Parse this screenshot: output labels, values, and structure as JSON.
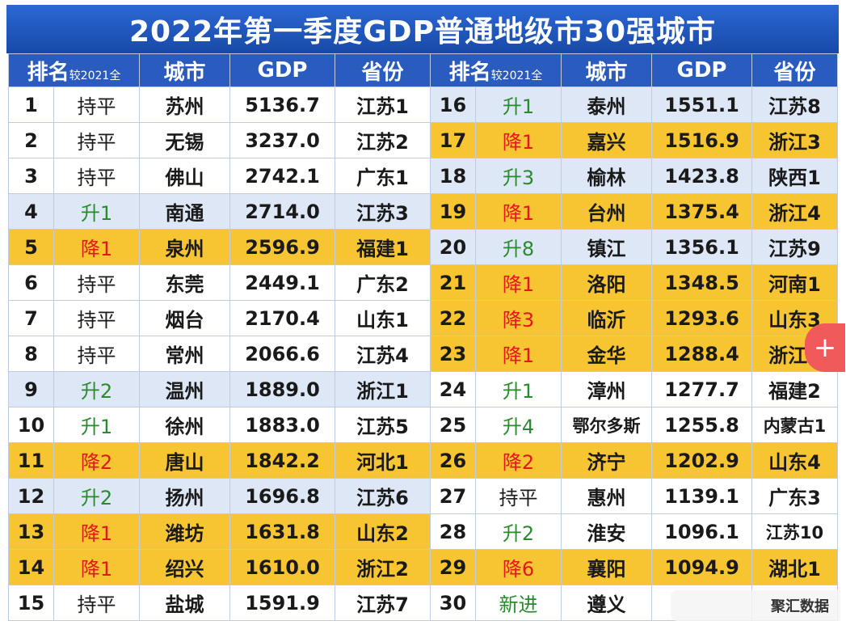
{
  "title": "2022年第一季度GDP普通地级市30强城市",
  "headers": {
    "rank": "排名",
    "rank_note": "较2021全",
    "city": "城市",
    "gdp": "GDP",
    "province": "省份"
  },
  "rows": [
    {
      "left": {
        "rank": "1",
        "change": "持平",
        "city": "苏州",
        "gdp": "5136.7",
        "prov": "江苏1"
      },
      "right": {
        "rank": "16",
        "change": "升1",
        "city": "泰州",
        "gdp": "1551.1",
        "prov": "江苏8"
      }
    },
    {
      "left": {
        "rank": "2",
        "change": "持平",
        "city": "无锡",
        "gdp": "3237.0",
        "prov": "江苏2"
      },
      "right": {
        "rank": "17",
        "change": "降1",
        "city": "嘉兴",
        "gdp": "1516.9",
        "prov": "浙江3"
      }
    },
    {
      "left": {
        "rank": "3",
        "change": "持平",
        "city": "佛山",
        "gdp": "2742.1",
        "prov": "广东1"
      },
      "right": {
        "rank": "18",
        "change": "升3",
        "city": "榆林",
        "gdp": "1423.8",
        "prov": "陕西1"
      }
    },
    {
      "left": {
        "rank": "4",
        "change": "升1",
        "city": "南通",
        "gdp": "2714.0",
        "prov": "江苏3"
      },
      "right": {
        "rank": "19",
        "change": "降1",
        "city": "台州",
        "gdp": "1375.4",
        "prov": "浙江4"
      }
    },
    {
      "left": {
        "rank": "5",
        "change": "降1",
        "city": "泉州",
        "gdp": "2596.9",
        "prov": "福建1"
      },
      "right": {
        "rank": "20",
        "change": "升8",
        "city": "镇江",
        "gdp": "1356.1",
        "prov": "江苏9"
      }
    },
    {
      "left": {
        "rank": "6",
        "change": "持平",
        "city": "东莞",
        "gdp": "2449.1",
        "prov": "广东2"
      },
      "right": {
        "rank": "21",
        "change": "降1",
        "city": "洛阳",
        "gdp": "1348.5",
        "prov": "河南1"
      }
    },
    {
      "left": {
        "rank": "7",
        "change": "持平",
        "city": "烟台",
        "gdp": "2170.4",
        "prov": "山东1"
      },
      "right": {
        "rank": "22",
        "change": "降3",
        "city": "临沂",
        "gdp": "1293.6",
        "prov": "山东3"
      }
    },
    {
      "left": {
        "rank": "8",
        "change": "持平",
        "city": "常州",
        "gdp": "2066.6",
        "prov": "江苏4"
      },
      "right": {
        "rank": "23",
        "change": "降1",
        "city": "金华",
        "gdp": "1288.4",
        "prov": "浙江5"
      }
    },
    {
      "left": {
        "rank": "9",
        "change": "升2",
        "city": "温州",
        "gdp": "1889.0",
        "prov": "浙江1"
      },
      "right": {
        "rank": "24",
        "change": "升1",
        "city": "漳州",
        "gdp": "1277.7",
        "prov": "福建2"
      }
    },
    {
      "left": {
        "rank": "10",
        "change": "升1",
        "city": "徐州",
        "gdp": "1883.0",
        "prov": "江苏5"
      },
      "right": {
        "rank": "25",
        "change": "升4",
        "city": "鄂尔多斯",
        "gdp": "1255.8",
        "prov": "内蒙古1"
      }
    },
    {
      "left": {
        "rank": "11",
        "change": "降2",
        "city": "唐山",
        "gdp": "1842.2",
        "prov": "河北1"
      },
      "right": {
        "rank": "26",
        "change": "降2",
        "city": "济宁",
        "gdp": "1202.9",
        "prov": "山东4"
      }
    },
    {
      "left": {
        "rank": "12",
        "change": "升2",
        "city": "扬州",
        "gdp": "1696.8",
        "prov": "江苏6"
      },
      "right": {
        "rank": "27",
        "change": "持平",
        "city": "惠州",
        "gdp": "1139.1",
        "prov": "广东3"
      }
    },
    {
      "left": {
        "rank": "13",
        "change": "降1",
        "city": "潍坊",
        "gdp": "1631.8",
        "prov": "山东2"
      },
      "right": {
        "rank": "28",
        "change": "升2",
        "city": "淮安",
        "gdp": "1096.1",
        "prov": "江苏10"
      }
    },
    {
      "left": {
        "rank": "14",
        "change": "降1",
        "city": "绍兴",
        "gdp": "1610.0",
        "prov": "浙江2"
      },
      "right": {
        "rank": "29",
        "change": "降6",
        "city": "襄阳",
        "gdp": "1094.9",
        "prov": "湖北1"
      }
    },
    {
      "left": {
        "rank": "15",
        "change": "持平",
        "city": "盐城",
        "gdp": "1591.9",
        "prov": "江苏7"
      },
      "right": {
        "rank": "30",
        "change": "新进",
        "city": "遵义",
        "gdp": "",
        "prov": ""
      }
    }
  ],
  "watermark": "聚汇数据",
  "plus_icon": "+",
  "colors": {
    "header": "#2a5cc0",
    "up": "#2a8a2e",
    "down": "#e01818",
    "highlight": "#f6c531",
    "row_blue": "#dde7f5"
  }
}
